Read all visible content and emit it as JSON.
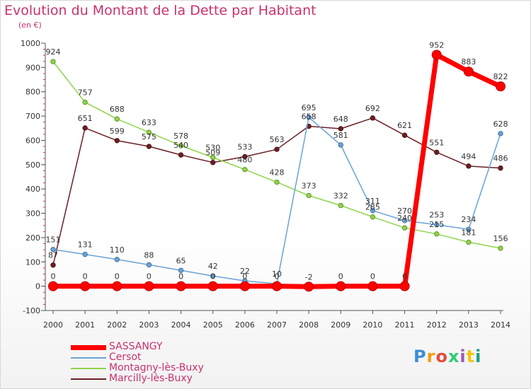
{
  "chart_data": {
    "type": "line",
    "title": "Evolution du Montant de la Dette par Habitant",
    "subtitle": "(en €)",
    "x": [
      "2000",
      "2001",
      "2002",
      "2003",
      "2004",
      "2005",
      "2006",
      "2007",
      "2008",
      "2009",
      "2010",
      "2011",
      "2012",
      "2013",
      "2014"
    ],
    "ylim": [
      -100,
      1000
    ],
    "yticks": [
      "-100",
      "0",
      "100",
      "200",
      "300",
      "400",
      "500",
      "600",
      "700",
      "800",
      "900",
      "1000"
    ],
    "grid": false,
    "legend_position": "bottom-left",
    "series": [
      {
        "name": "SASSANGY",
        "color": "#ff0000",
        "values": [
          0,
          0,
          0,
          0,
          0,
          0,
          0,
          0,
          -2,
          0,
          0,
          0,
          952,
          883,
          822
        ],
        "labels": [
          "0",
          "0",
          "0",
          "0",
          "0",
          "0",
          "0",
          "0",
          "-2",
          "0",
          "0",
          "0",
          "952",
          "883",
          "822"
        ]
      },
      {
        "name": "Cersot",
        "color": "#6aa3d5",
        "values": [
          151,
          131,
          110,
          88,
          65,
          42,
          22,
          10,
          695,
          581,
          311,
          270,
          253,
          234,
          628
        ],
        "labels": [
          "151",
          "131",
          "110",
          "88",
          "65",
          "42",
          "22",
          "10",
          "695",
          "581",
          "311",
          "270",
          "253",
          "234",
          "628"
        ]
      },
      {
        "name": "Montagny-lès-Buxy",
        "color": "#8fd44a",
        "values": [
          924,
          757,
          688,
          633,
          578,
          530,
          480,
          428,
          373,
          332,
          285,
          240,
          215,
          181,
          156
        ],
        "labels": [
          "924",
          "757",
          "688",
          "633",
          "578",
          "530",
          "480",
          "428",
          "373",
          "332",
          "285",
          "240",
          "215",
          "181",
          "156"
        ]
      },
      {
        "name": "Marcilly-lès-Buxy",
        "color": "#6b1f24",
        "values": [
          87,
          651,
          599,
          575,
          540,
          509,
          533,
          563,
          658,
          648,
          692,
          621,
          551,
          494,
          486
        ],
        "labels": [
          "87",
          "651",
          "599",
          "575",
          "540",
          "509",
          "533",
          "563",
          "658",
          "648",
          "692",
          "621",
          "551",
          "494",
          "486"
        ]
      }
    ]
  },
  "logo": {
    "text": "Proxiti"
  }
}
